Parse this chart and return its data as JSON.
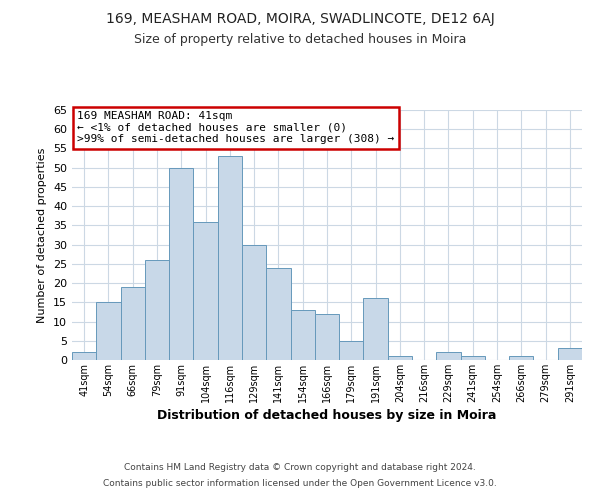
{
  "title1": "169, MEASHAM ROAD, MOIRA, SWADLINCOTE, DE12 6AJ",
  "title2": "Size of property relative to detached houses in Moira",
  "xlabel": "Distribution of detached houses by size in Moira",
  "ylabel": "Number of detached properties",
  "bin_labels": [
    "41sqm",
    "54sqm",
    "66sqm",
    "79sqm",
    "91sqm",
    "104sqm",
    "116sqm",
    "129sqm",
    "141sqm",
    "154sqm",
    "166sqm",
    "179sqm",
    "191sqm",
    "204sqm",
    "216sqm",
    "229sqm",
    "241sqm",
    "254sqm",
    "266sqm",
    "279sqm",
    "291sqm"
  ],
  "bar_heights": [
    2,
    15,
    19,
    26,
    50,
    36,
    53,
    30,
    24,
    13,
    12,
    5,
    16,
    1,
    0,
    2,
    1,
    0,
    1,
    0,
    3
  ],
  "bar_color": "#c8d8e8",
  "bar_edge_color": "#6699bb",
  "ylim": [
    0,
    65
  ],
  "yticks": [
    0,
    5,
    10,
    15,
    20,
    25,
    30,
    35,
    40,
    45,
    50,
    55,
    60,
    65
  ],
  "annotation_box_title": "169 MEASHAM ROAD: 41sqm",
  "annotation_line1": "← <1% of detached houses are smaller (0)",
  "annotation_line2": ">99% of semi-detached houses are larger (308) →",
  "annotation_box_color": "#ffffff",
  "annotation_border_color": "#cc0000",
  "footer1": "Contains HM Land Registry data © Crown copyright and database right 2024.",
  "footer2": "Contains public sector information licensed under the Open Government Licence v3.0.",
  "background_color": "#ffffff",
  "grid_color": "#ccd8e4"
}
